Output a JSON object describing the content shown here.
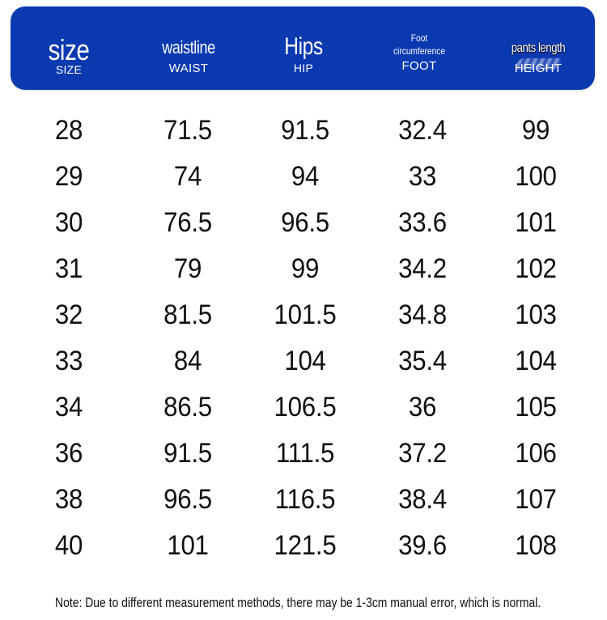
{
  "header": {
    "size": {
      "main": "size",
      "sub": "SIZE"
    },
    "waist": {
      "main": "waistline",
      "sub": "WAIST"
    },
    "hip": {
      "main": "Hips",
      "sub": "HIP"
    },
    "foot": {
      "main_line1": "Foot",
      "main_line2": "circumference",
      "sub": "FOOT"
    },
    "height": {
      "main": "pants length",
      "sub": "HEIGHT"
    }
  },
  "colors": {
    "header_bg": "#0b39b0",
    "header_text": "#ffffff",
    "body_text": "#111111"
  },
  "rows": [
    {
      "size": "28",
      "waist": "71.5",
      "hip": "91.5",
      "foot": "32.4",
      "height": "99"
    },
    {
      "size": "29",
      "waist": "74",
      "hip": "94",
      "foot": "33",
      "height": "100"
    },
    {
      "size": "30",
      "waist": "76.5",
      "hip": "96.5",
      "foot": "33.6",
      "height": "101"
    },
    {
      "size": "31",
      "waist": "79",
      "hip": "99",
      "foot": "34.2",
      "height": "102"
    },
    {
      "size": "32",
      "waist": "81.5",
      "hip": "101.5",
      "foot": "34.8",
      "height": "103"
    },
    {
      "size": "33",
      "waist": "84",
      "hip": "104",
      "foot": "35.4",
      "height": "104"
    },
    {
      "size": "34",
      "waist": "86.5",
      "hip": "106.5",
      "foot": "36",
      "height": "105"
    },
    {
      "size": "36",
      "waist": "91.5",
      "hip": "111.5",
      "foot": "37.2",
      "height": "106"
    },
    {
      "size": "38",
      "waist": "96.5",
      "hip": "116.5",
      "foot": "38.4",
      "height": "107"
    },
    {
      "size": "40",
      "waist": "101",
      "hip": "121.5",
      "foot": "39.6",
      "height": "108"
    }
  ],
  "note": "Note: Due to different measurement methods, there may be 1-3cm manual error, which is normal."
}
